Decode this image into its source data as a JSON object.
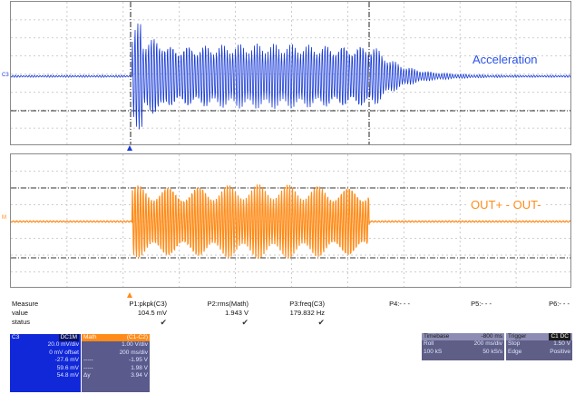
{
  "panel1": {
    "channel_tag": "C3",
    "trace_label": "Acceleration",
    "trace_color": "#1a3cd8"
  },
  "panel2": {
    "channel_tag": "M",
    "trace_label": "OUT+ - OUT-",
    "trace_color": "#ff8c1a"
  },
  "measure": {
    "row_labels": [
      "Measure",
      "value",
      "status"
    ],
    "params": [
      {
        "name": "P1:pkpk(C3)",
        "value": "104.5 mV",
        "status": "✔"
      },
      {
        "name": "P2:rms(Math)",
        "value": "1.943 V",
        "status": "✔"
      },
      {
        "name": "P3:freq(C3)",
        "value": "179.832 Hz",
        "status": "✔"
      },
      {
        "name": "P4:- - -",
        "value": "",
        "status": ""
      },
      {
        "name": "P5:- - -",
        "value": "",
        "status": ""
      },
      {
        "name": "P6:- - -",
        "value": "",
        "status": ""
      }
    ]
  },
  "channel_c3": {
    "header_left": "C3",
    "header_right": "DC1M",
    "rows": [
      [
        "",
        "20.0 mV/div"
      ],
      [
        "",
        "0 mV offset"
      ],
      [
        "",
        "-27.6 mV"
      ],
      [
        "",
        "59.6 mV"
      ],
      [
        "",
        "54.8 mV"
      ]
    ]
  },
  "math": {
    "header_left": "Math",
    "header_right": "(C1-C2)",
    "rows": [
      [
        "",
        "1.00 V/div"
      ],
      [
        "",
        "200 ms/div"
      ],
      [
        "-----",
        "-1.95 V"
      ],
      [
        "-----",
        "1.98 V"
      ],
      [
        "Δy",
        "3.94 V"
      ]
    ]
  },
  "timebase": {
    "header_left": "Timebase",
    "header_right": "-800 ms",
    "rows": [
      [
        "Roll",
        "200 ms/div"
      ],
      [
        "100 kS",
        "50 kS/s"
      ]
    ]
  },
  "trigger": {
    "header_left": "Trigger",
    "header_right": "C1 DC",
    "rows": [
      [
        "Stop",
        "1.50 V"
      ],
      [
        "Edge",
        "Positive"
      ]
    ]
  },
  "colors": {
    "channel_blue": "#1a3cd8",
    "math_orange": "#ff8c1a",
    "grid": "#8f8f8f"
  }
}
